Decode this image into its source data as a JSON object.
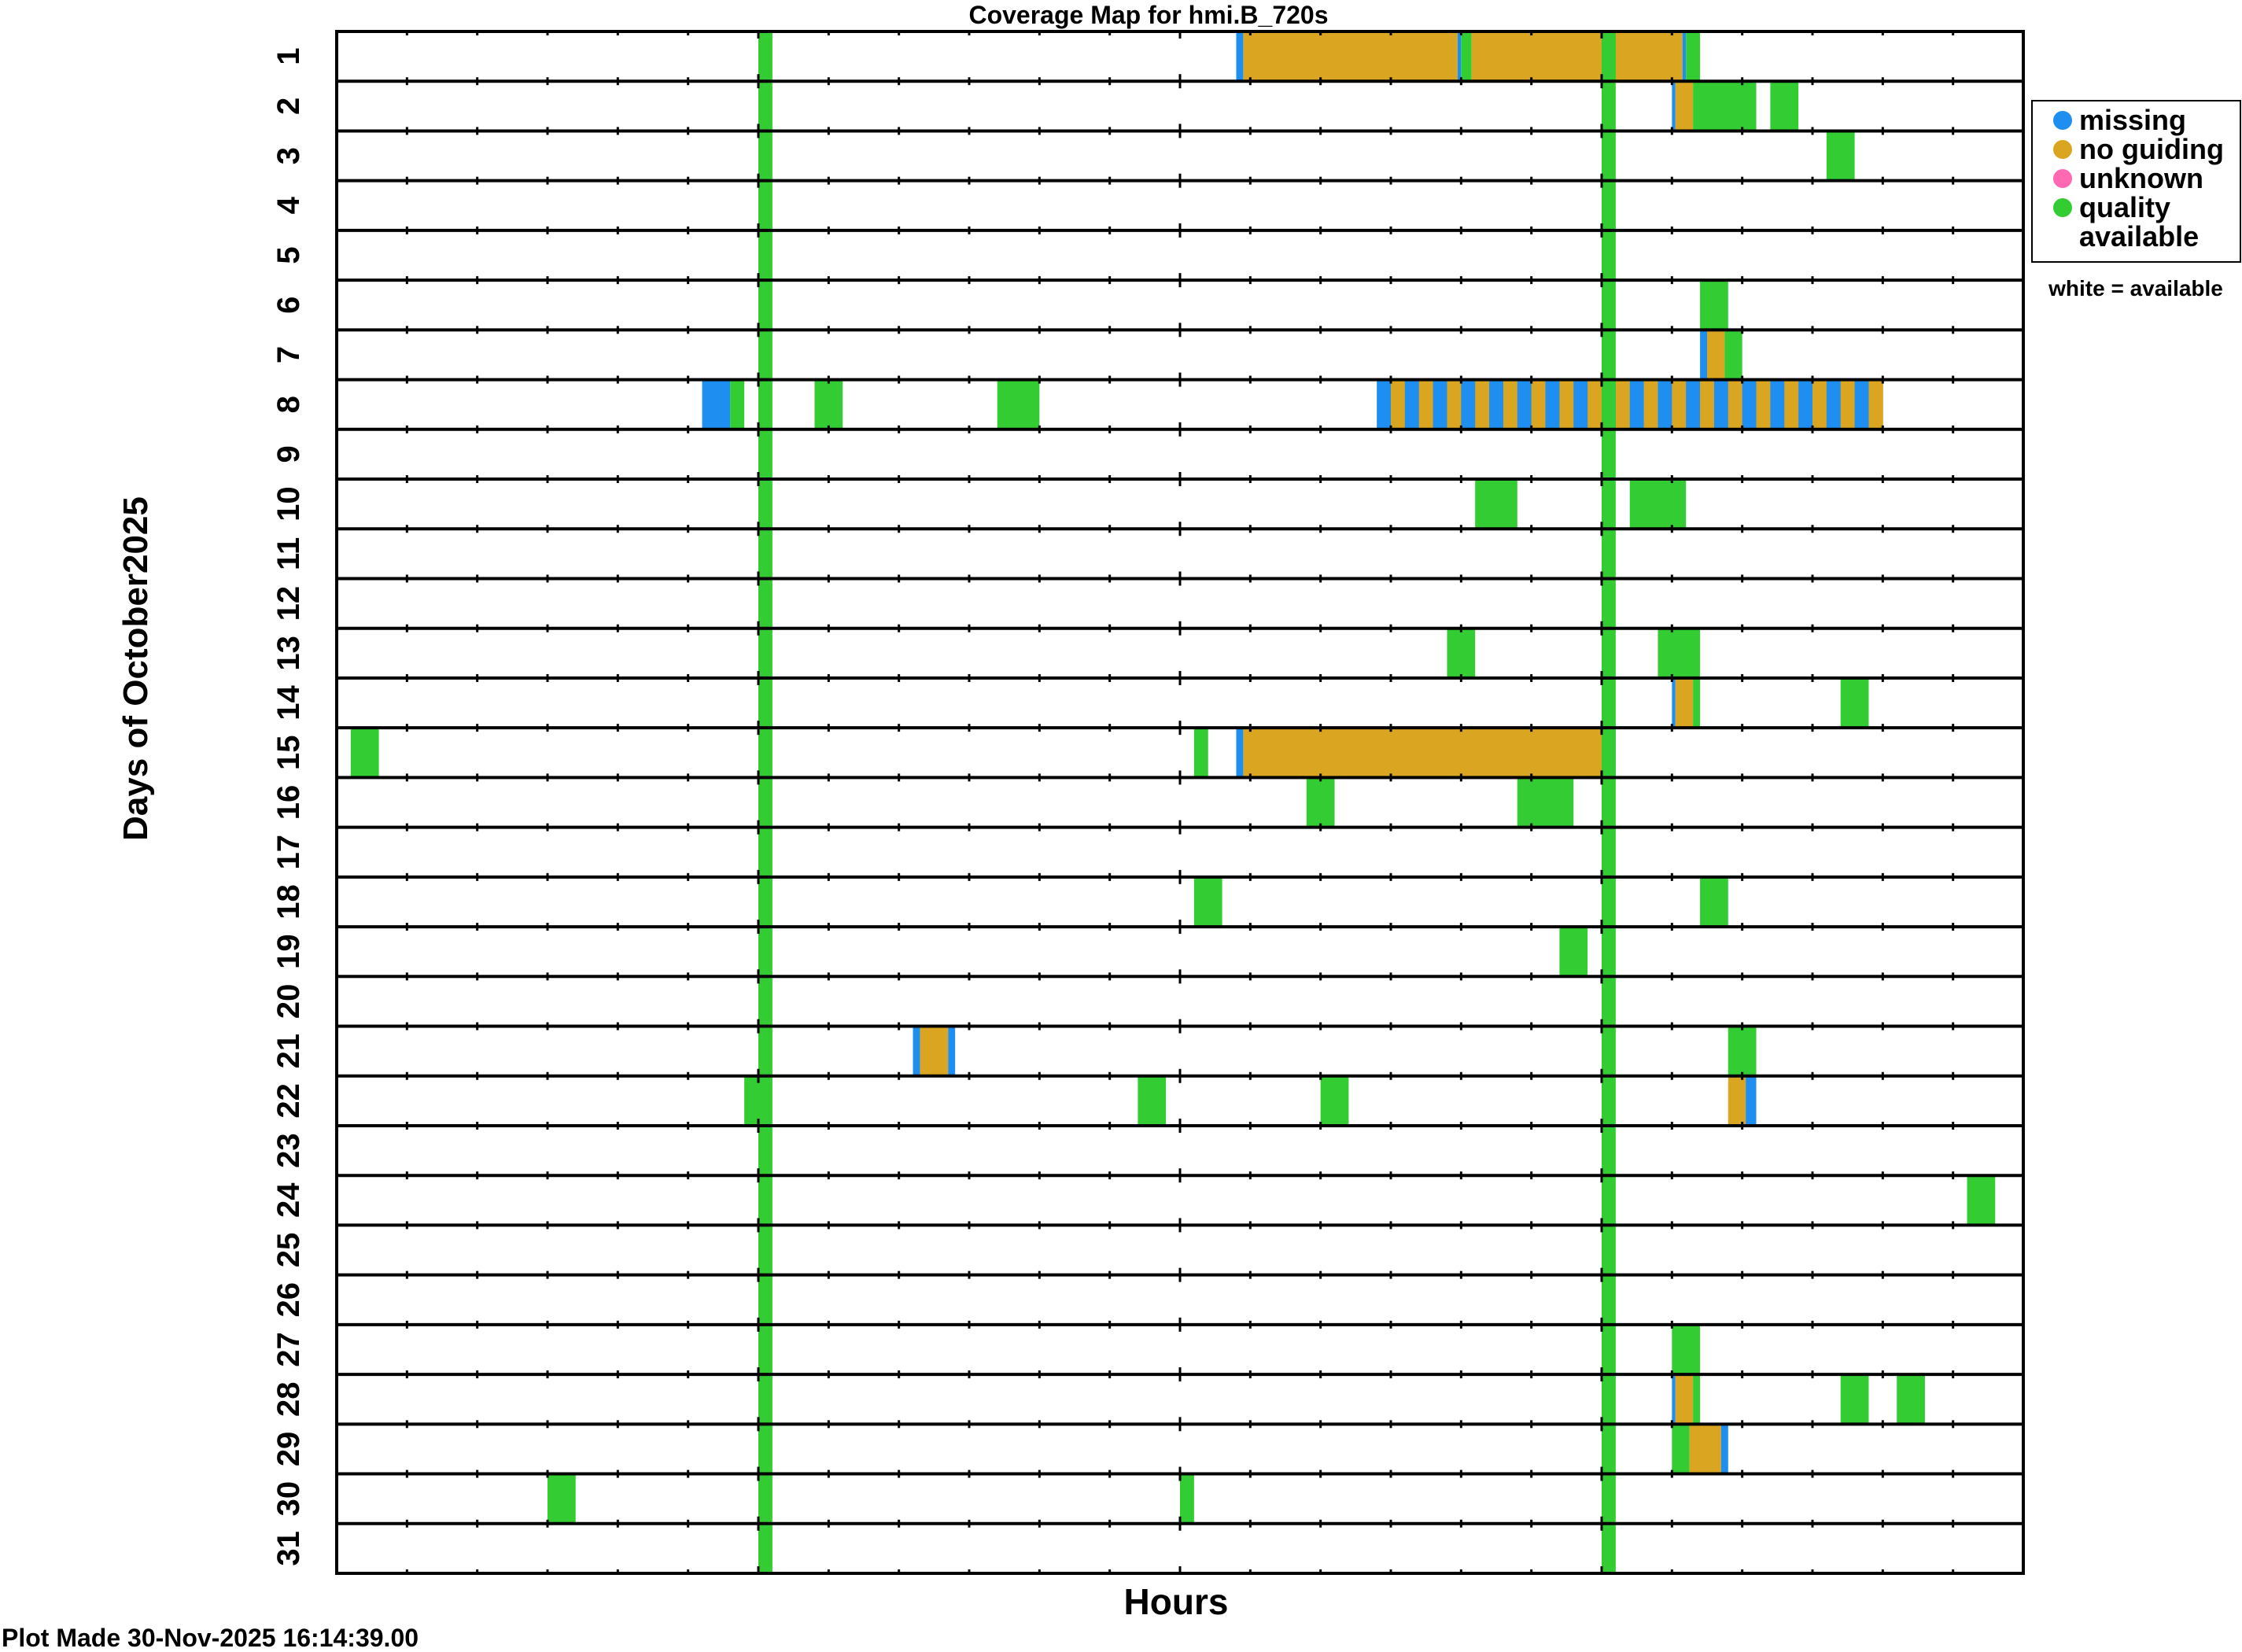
{
  "chart_data": {
    "type": "coverage-map",
    "title": "Coverage Map for hmi.B_720s",
    "xlabel": "Hours",
    "ylabel": "Days of October2025",
    "footer": "Plot Made 30-Nov-2025 16:14:39.00",
    "legend_note": "white = available",
    "legend": [
      {
        "key": "missing",
        "label": "missing",
        "color": "#1e8ff0"
      },
      {
        "key": "noguide",
        "label": "no guiding",
        "color": "#daa520"
      },
      {
        "key": "unknown",
        "label": "unknown",
        "color": "#ff69b4"
      },
      {
        "key": "quality",
        "label": "quality",
        "label2": "available",
        "color": "#33cc33"
      }
    ],
    "days": [
      "1",
      "2",
      "3",
      "4",
      "5",
      "6",
      "7",
      "8",
      "9",
      "10",
      "11",
      "12",
      "13",
      "14",
      "15",
      "16",
      "17",
      "18",
      "19",
      "20",
      "21",
      "22",
      "23",
      "24",
      "25",
      "26",
      "27",
      "28",
      "29",
      "30",
      "31"
    ],
    "xlim": [
      0,
      24
    ],
    "all_days_blocks": [
      {
        "start": 6.0,
        "end": 6.2,
        "status": "quality"
      },
      {
        "start": 18.0,
        "end": 18.2,
        "status": "quality"
      }
    ],
    "blocks": [
      {
        "day": 1,
        "start": 12.8,
        "end": 12.9,
        "status": "missing"
      },
      {
        "day": 1,
        "start": 12.9,
        "end": 15.95,
        "status": "noguide"
      },
      {
        "day": 1,
        "start": 15.95,
        "end": 16.0,
        "status": "missing"
      },
      {
        "day": 1,
        "start": 16.0,
        "end": 16.15,
        "status": "quality"
      },
      {
        "day": 1,
        "start": 16.15,
        "end": 19.15,
        "status": "noguide"
      },
      {
        "day": 1,
        "start": 19.15,
        "end": 19.2,
        "status": "missing"
      },
      {
        "day": 1,
        "start": 19.2,
        "end": 19.4,
        "status": "quality"
      },
      {
        "day": 2,
        "start": 19.0,
        "end": 19.05,
        "status": "missing"
      },
      {
        "day": 2,
        "start": 19.05,
        "end": 19.3,
        "status": "noguide"
      },
      {
        "day": 2,
        "start": 19.3,
        "end": 20.2,
        "status": "quality"
      },
      {
        "day": 2,
        "start": 20.4,
        "end": 20.8,
        "status": "quality"
      },
      {
        "day": 3,
        "start": 21.2,
        "end": 21.6,
        "status": "quality"
      },
      {
        "day": 6,
        "start": 19.4,
        "end": 19.8,
        "status": "quality"
      },
      {
        "day": 7,
        "start": 19.4,
        "end": 19.5,
        "status": "missing"
      },
      {
        "day": 7,
        "start": 19.5,
        "end": 19.75,
        "status": "noguide"
      },
      {
        "day": 7,
        "start": 19.75,
        "end": 20.0,
        "status": "quality"
      },
      {
        "day": 8,
        "start": 5.2,
        "end": 5.6,
        "status": "missing"
      },
      {
        "day": 8,
        "start": 5.6,
        "end": 5.8,
        "status": "quality"
      },
      {
        "day": 8,
        "start": 6.8,
        "end": 7.2,
        "status": "quality"
      },
      {
        "day": 8,
        "start": 9.4,
        "end": 10.0,
        "status": "quality"
      },
      {
        "day": 8,
        "start": 14.8,
        "end": 22.0,
        "status": "striped"
      },
      {
        "day": 10,
        "start": 16.2,
        "end": 16.8,
        "status": "quality"
      },
      {
        "day": 10,
        "start": 18.4,
        "end": 19.2,
        "status": "quality"
      },
      {
        "day": 13,
        "start": 15.8,
        "end": 16.2,
        "status": "quality"
      },
      {
        "day": 13,
        "start": 18.8,
        "end": 19.4,
        "status": "quality"
      },
      {
        "day": 14,
        "start": 19.0,
        "end": 19.05,
        "status": "missing"
      },
      {
        "day": 14,
        "start": 19.05,
        "end": 19.3,
        "status": "noguide"
      },
      {
        "day": 14,
        "start": 19.3,
        "end": 19.4,
        "status": "quality"
      },
      {
        "day": 14,
        "start": 21.4,
        "end": 21.8,
        "status": "quality"
      },
      {
        "day": 15,
        "start": 0.2,
        "end": 0.6,
        "status": "quality"
      },
      {
        "day": 15,
        "start": 12.2,
        "end": 12.4,
        "status": "quality"
      },
      {
        "day": 15,
        "start": 12.8,
        "end": 12.9,
        "status": "missing"
      },
      {
        "day": 15,
        "start": 12.9,
        "end": 18.1,
        "status": "noguide"
      },
      {
        "day": 15,
        "start": 18.1,
        "end": 18.2,
        "status": "missing"
      },
      {
        "day": 16,
        "start": 13.8,
        "end": 14.2,
        "status": "quality"
      },
      {
        "day": 16,
        "start": 16.8,
        "end": 17.6,
        "status": "quality"
      },
      {
        "day": 18,
        "start": 12.2,
        "end": 12.6,
        "status": "quality"
      },
      {
        "day": 18,
        "start": 19.4,
        "end": 19.8,
        "status": "quality"
      },
      {
        "day": 19,
        "start": 17.4,
        "end": 17.8,
        "status": "quality"
      },
      {
        "day": 21,
        "start": 8.2,
        "end": 8.3,
        "status": "missing"
      },
      {
        "day": 21,
        "start": 8.3,
        "end": 8.7,
        "status": "noguide"
      },
      {
        "day": 21,
        "start": 8.7,
        "end": 8.8,
        "status": "missing"
      },
      {
        "day": 21,
        "start": 19.8,
        "end": 20.2,
        "status": "quality"
      },
      {
        "day": 22,
        "start": 5.8,
        "end": 6.0,
        "status": "quality"
      },
      {
        "day": 22,
        "start": 11.4,
        "end": 11.8,
        "status": "quality"
      },
      {
        "day": 22,
        "start": 14.0,
        "end": 14.4,
        "status": "quality"
      },
      {
        "day": 22,
        "start": 19.8,
        "end": 20.05,
        "status": "noguide"
      },
      {
        "day": 22,
        "start": 20.05,
        "end": 20.2,
        "status": "missing"
      },
      {
        "day": 24,
        "start": 23.2,
        "end": 23.6,
        "status": "quality"
      },
      {
        "day": 27,
        "start": 19.0,
        "end": 19.4,
        "status": "quality"
      },
      {
        "day": 28,
        "start": 19.0,
        "end": 19.05,
        "status": "missing"
      },
      {
        "day": 28,
        "start": 19.05,
        "end": 19.3,
        "status": "noguide"
      },
      {
        "day": 28,
        "start": 19.3,
        "end": 19.4,
        "status": "quality"
      },
      {
        "day": 28,
        "start": 21.4,
        "end": 21.8,
        "status": "quality"
      },
      {
        "day": 28,
        "start": 22.2,
        "end": 22.6,
        "status": "quality"
      },
      {
        "day": 29,
        "start": 19.0,
        "end": 19.25,
        "status": "quality"
      },
      {
        "day": 29,
        "start": 19.25,
        "end": 19.7,
        "status": "noguide"
      },
      {
        "day": 29,
        "start": 19.7,
        "end": 19.8,
        "status": "missing"
      },
      {
        "day": 30,
        "start": 3.0,
        "end": 3.4,
        "status": "quality"
      },
      {
        "day": 30,
        "start": 12.0,
        "end": 12.2,
        "status": "quality"
      }
    ]
  }
}
